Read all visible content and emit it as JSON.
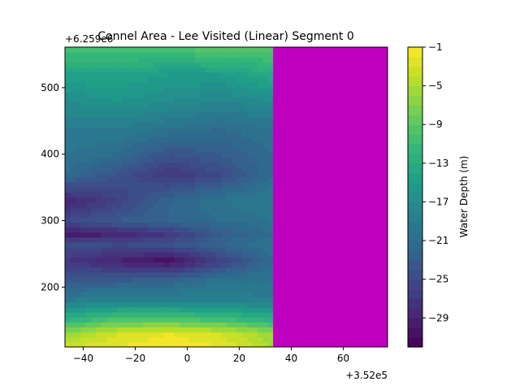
{
  "chart_data": {
    "type": "heatmap",
    "title": "Connel Area - Lee Visited (Linear) Segment 0",
    "xlabel": "",
    "ylabel": "",
    "x_offset_label": "+3.52e5",
    "y_offset_label": "+6.259e6",
    "xlim": [
      -47,
      77
    ],
    "ylim": [
      110,
      561
    ],
    "x_ticks": [
      -40,
      -20,
      0,
      20,
      40,
      60
    ],
    "y_ticks": [
      200,
      300,
      400,
      500
    ],
    "x_tick_labels": [
      "−40",
      "−20",
      "0",
      "20",
      "40",
      "60"
    ],
    "y_tick_labels": [
      "200",
      "300",
      "400",
      "500"
    ],
    "visited_region": {
      "x_from": 33,
      "x_to": 77,
      "color": "#bf00bf"
    },
    "depth_grid": {
      "x": [
        -47,
        -27,
        -7,
        13,
        33
      ],
      "y": [
        110,
        130,
        150,
        180,
        210,
        240,
        265,
        280,
        300,
        330,
        370,
        400,
        440,
        480,
        520,
        561
      ],
      "z": [
        [
          -3,
          -2,
          -1,
          -2,
          -5
        ],
        [
          -6,
          -3,
          -2,
          -3,
          -6
        ],
        [
          -12,
          -9,
          -9,
          -10,
          -12
        ],
        [
          -19,
          -18,
          -18,
          -18,
          -19
        ],
        [
          -23,
          -23,
          -22,
          -20,
          -20
        ],
        [
          -27,
          -29,
          -31,
          -26,
          -21
        ],
        [
          -24,
          -25,
          -24,
          -22,
          -20
        ],
        [
          -30,
          -29,
          -27,
          -23,
          -21
        ],
        [
          -25,
          -23,
          -22,
          -21,
          -20
        ],
        [
          -29,
          -26,
          -22,
          -20,
          -19
        ],
        [
          -21,
          -24,
          -27,
          -25,
          -21
        ],
        [
          -20,
          -21,
          -24,
          -23,
          -21
        ],
        [
          -19,
          -19,
          -20,
          -21,
          -20
        ],
        [
          -17,
          -16,
          -17,
          -18,
          -17
        ],
        [
          -14,
          -14,
          -15,
          -15,
          -13
        ],
        [
          -10,
          -10,
          -10,
          -9,
          -9
        ]
      ]
    },
    "colorbar": {
      "label": "Water Depth (m)",
      "min": -32,
      "max": -1,
      "ticks": [
        -1,
        -5,
        -9,
        -13,
        -17,
        -21,
        -25,
        -29
      ],
      "tick_labels": [
        "−1",
        "−5",
        "−9",
        "−13",
        "−17",
        "−21",
        "−25",
        "−29"
      ]
    },
    "colormap": [
      "#440154",
      "#482878",
      "#3e4989",
      "#31688e",
      "#26828e",
      "#1f9e89",
      "#35b779",
      "#6ece58",
      "#b5de2b",
      "#fde725"
    ]
  }
}
